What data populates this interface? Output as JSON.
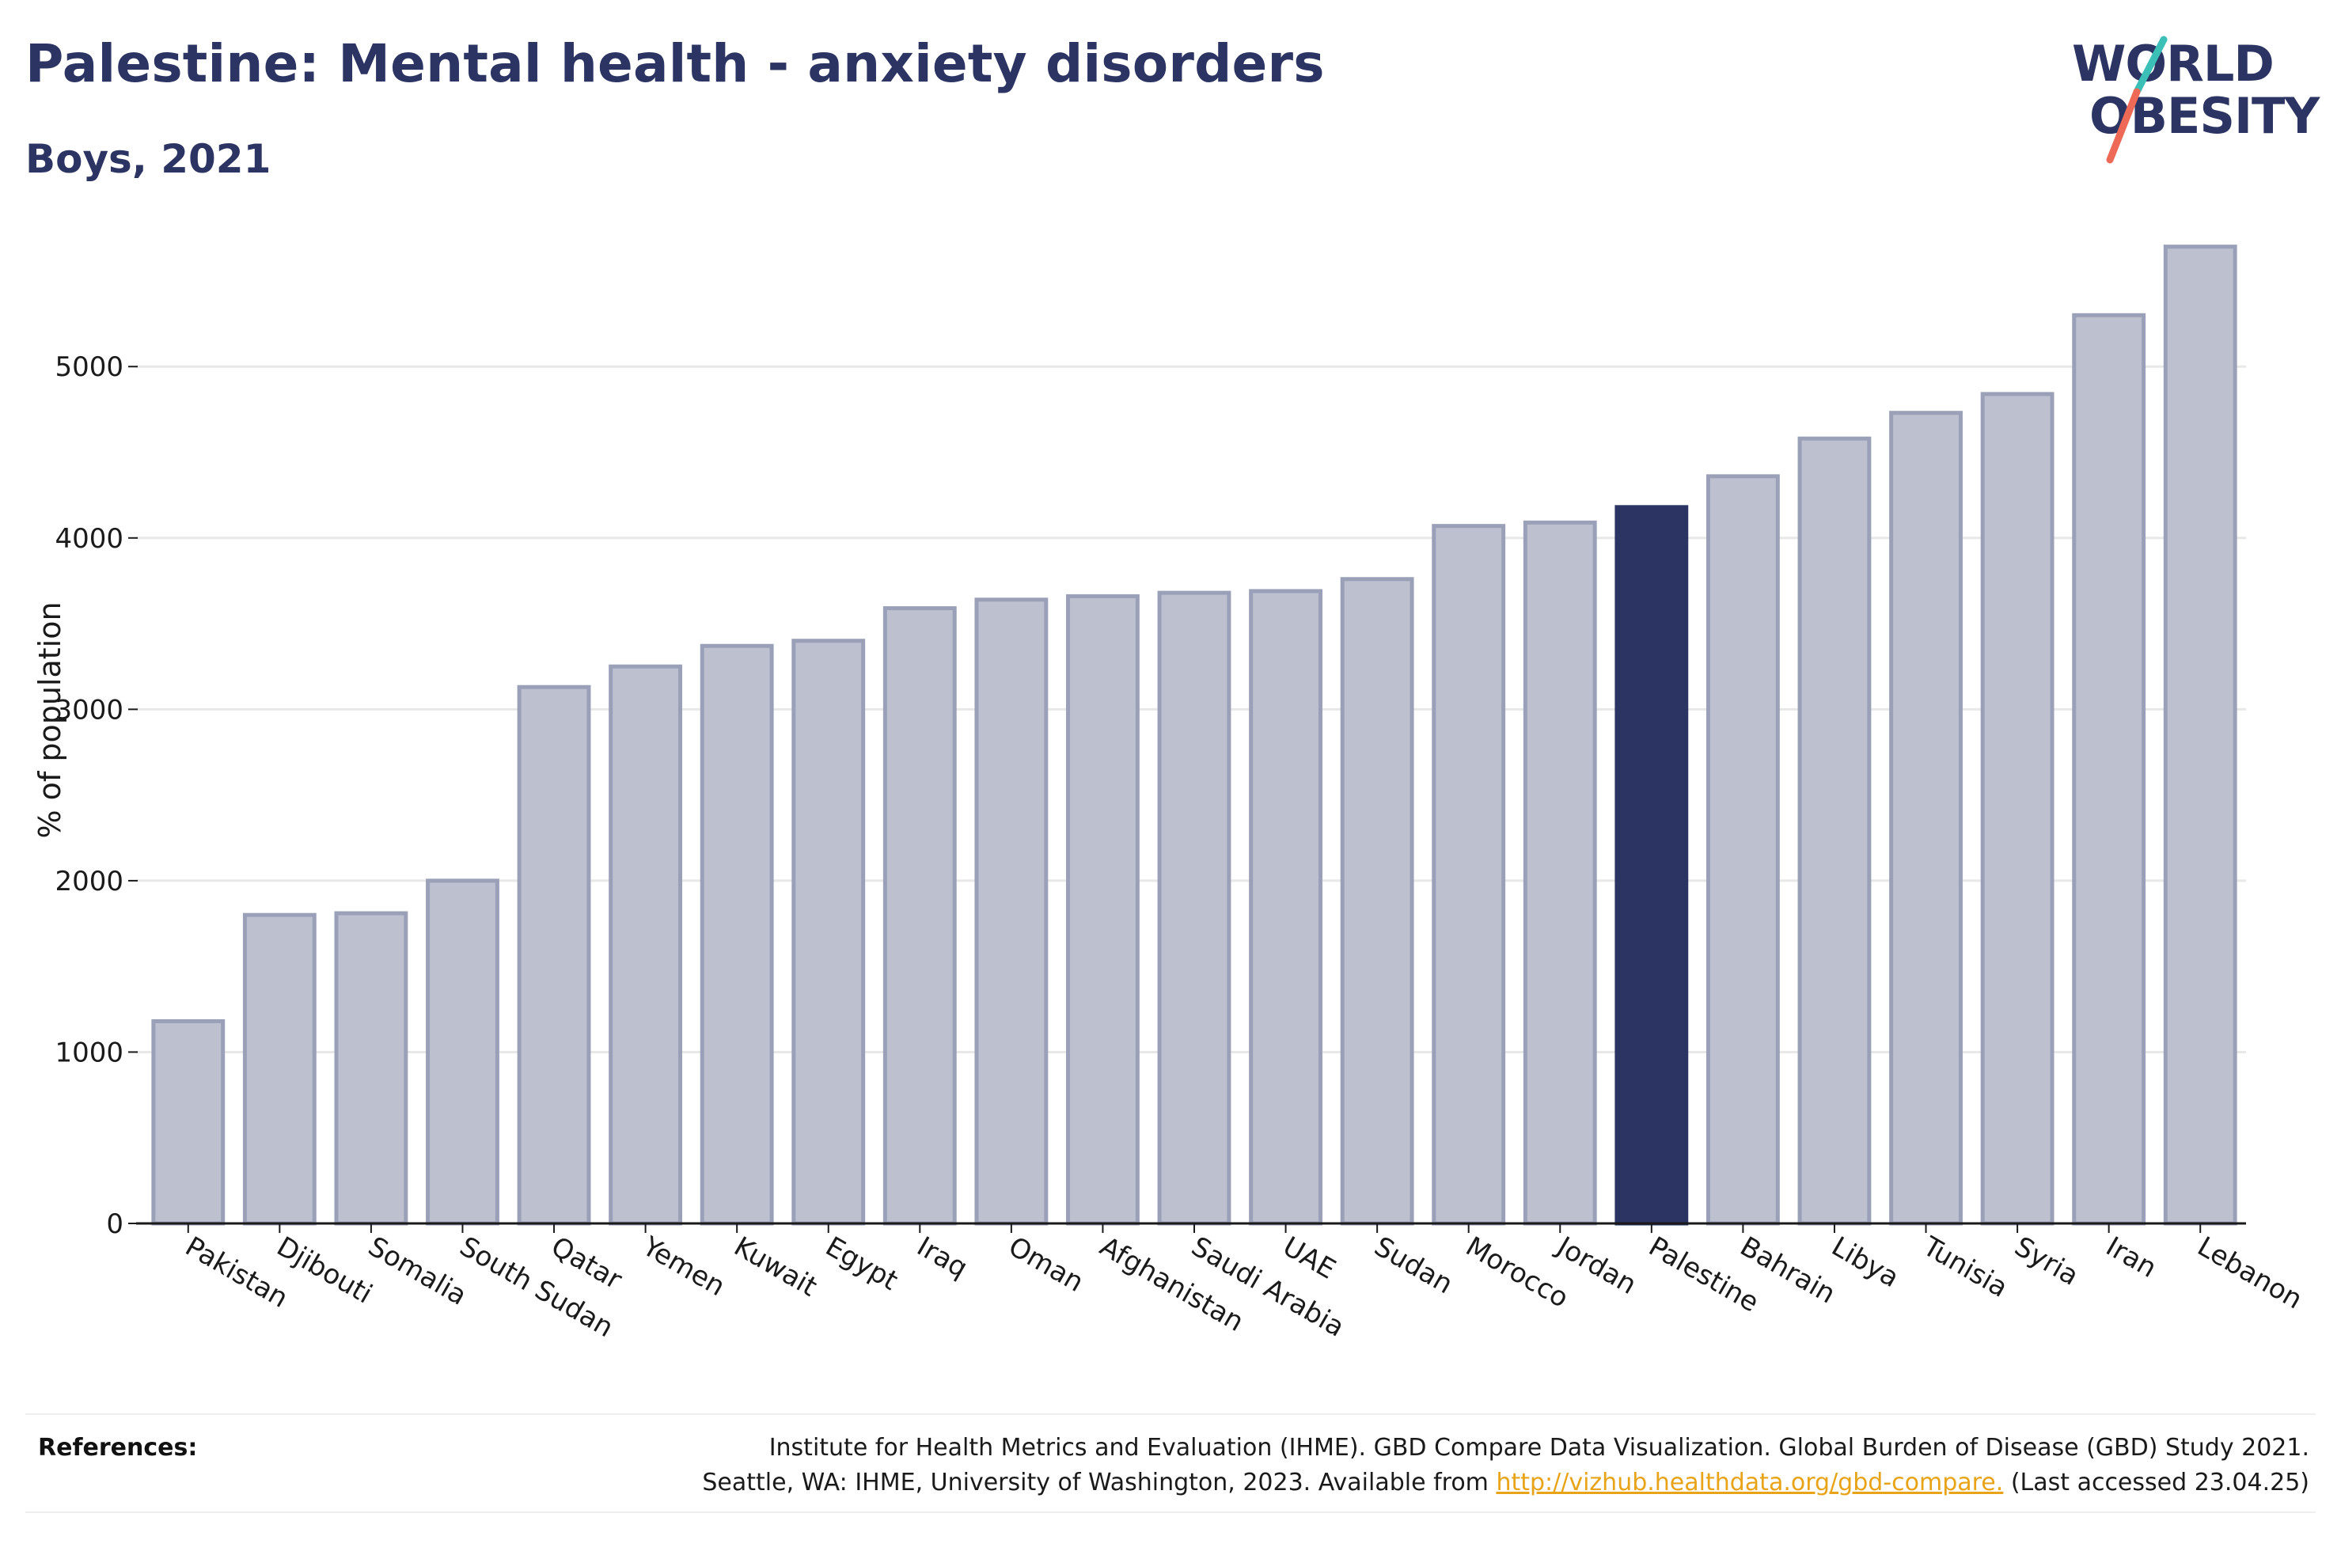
{
  "header": {
    "title": "Palestine: Mental health - anxiety disorders",
    "subtitle": "Boys, 2021"
  },
  "logo": {
    "line1": "WORLD",
    "line2": "OBESITY",
    "accent_teal": "#3bbfb6",
    "accent_coral": "#ee6a57"
  },
  "colors": {
    "bar_default": "#bcc0cf",
    "bar_default_edge": "#9aa0b8",
    "bar_highlight": "#2b3462",
    "grid": "#e8e8e8",
    "axis": "#1a1a1a"
  },
  "chart_data": {
    "type": "bar",
    "title": "Palestine: Mental health - anxiety disorders",
    "subtitle": "Boys, 2021",
    "xlabel": "",
    "ylabel": "% of population",
    "ylim": [
      0,
      5800
    ],
    "yticks": [
      0,
      1000,
      2000,
      3000,
      4000,
      5000
    ],
    "grid": true,
    "highlight": "Palestine",
    "categories": [
      "Pakistan",
      "Djibouti",
      "Somalia",
      "South Sudan",
      "Qatar",
      "Yemen",
      "Kuwait",
      "Egypt",
      "Iraq",
      "Oman",
      "Afghanistan",
      "Saudi Arabia",
      "UAE",
      "Sudan",
      "Morocco",
      "Jordan",
      "Palestine",
      "Bahrain",
      "Libya",
      "Tunisia",
      "Syria",
      "Iran",
      "Lebanon"
    ],
    "values": [
      1180,
      1800,
      1810,
      2000,
      3130,
      3250,
      3370,
      3400,
      3590,
      3640,
      3660,
      3680,
      3690,
      3760,
      4070,
      4090,
      4180,
      4360,
      4580,
      4730,
      4840,
      5300,
      5700
    ]
  },
  "references": {
    "heading": "References:",
    "line1": "Institute for Health Metrics and Evaluation (IHME). GBD Compare Data Visualization. Global Burden of Disease (GBD) Study 2021.",
    "line2_prefix": "Seattle, WA: IHME, University of Washington, 2023. Available from ",
    "link": "http://vizhub.healthdata.org/gbd-compare.",
    "line2_suffix": " (Last accessed 23.04.25)"
  }
}
